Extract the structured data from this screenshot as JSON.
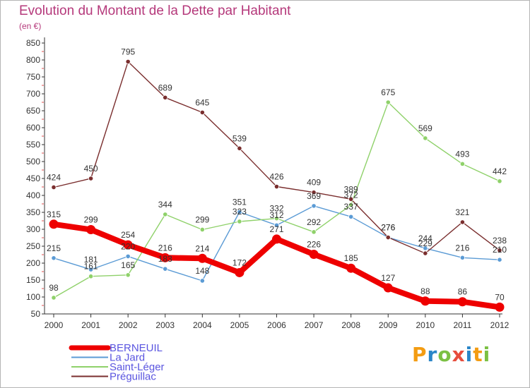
{
  "title": "Evolution du Montant de la Dette par Habitant",
  "subtitle": "(en €)",
  "logo_text": "Proxiti",
  "logo_colors": [
    "#f39c12",
    "#2a86c8",
    "#7bc043",
    "#e74c3c",
    "#2a86c8",
    "#f39c12",
    "#7bc043"
  ],
  "chart_data": {
    "type": "line",
    "x": [
      "2000",
      "2001",
      "2002",
      "2003",
      "2004",
      "2005",
      "2006",
      "2007",
      "2008",
      "2009",
      "2010",
      "2011",
      "2012"
    ],
    "ylim": [
      50,
      850
    ],
    "yticks": [
      50,
      100,
      150,
      200,
      250,
      300,
      350,
      400,
      450,
      500,
      550,
      600,
      650,
      700,
      750,
      800,
      850
    ],
    "grid": false,
    "legend_position": "bottom-left",
    "series": [
      {
        "name": "BERNEUIL",
        "color": "#ee0000",
        "emphasis": true,
        "values": [
          315,
          299,
          254,
          216,
          214,
          172,
          271,
          226,
          185,
          127,
          88,
          86,
          70
        ],
        "labels": [
          "315",
          "299",
          "254",
          "216",
          "214",
          "172",
          "271",
          "226",
          "185",
          "127",
          "88",
          "86",
          "70"
        ]
      },
      {
        "name": "La Jard",
        "color": "#5b9bd5",
        "emphasis": false,
        "values": [
          215,
          181,
          220,
          183,
          148,
          351,
          312,
          369,
          337,
          276,
          244,
          216,
          210
        ],
        "labels": [
          "215",
          "181",
          "220",
          "183",
          "148",
          "351",
          "312",
          "369",
          "337",
          "276",
          "244",
          "216",
          "210"
        ]
      },
      {
        "name": "Saint-Léger",
        "color": "#8fd16a",
        "emphasis": false,
        "values": [
          98,
          161,
          165,
          344,
          299,
          323,
          332,
          292,
          372,
          675,
          569,
          493,
          442
        ],
        "labels": [
          "98",
          "161",
          "165",
          "344",
          "299",
          "323",
          "332",
          "292",
          "372",
          "675",
          "569",
          "493",
          "442"
        ]
      },
      {
        "name": "Préguillac",
        "color": "#7a2e2e",
        "emphasis": false,
        "values": [
          424,
          450,
          795,
          689,
          645,
          539,
          426,
          409,
          389,
          276,
          229,
          321,
          238
        ],
        "labels": [
          "424",
          "450",
          "795",
          "689",
          "645",
          "539",
          "426",
          "409",
          "389",
          "276",
          "229",
          "321",
          "238"
        ]
      }
    ]
  }
}
